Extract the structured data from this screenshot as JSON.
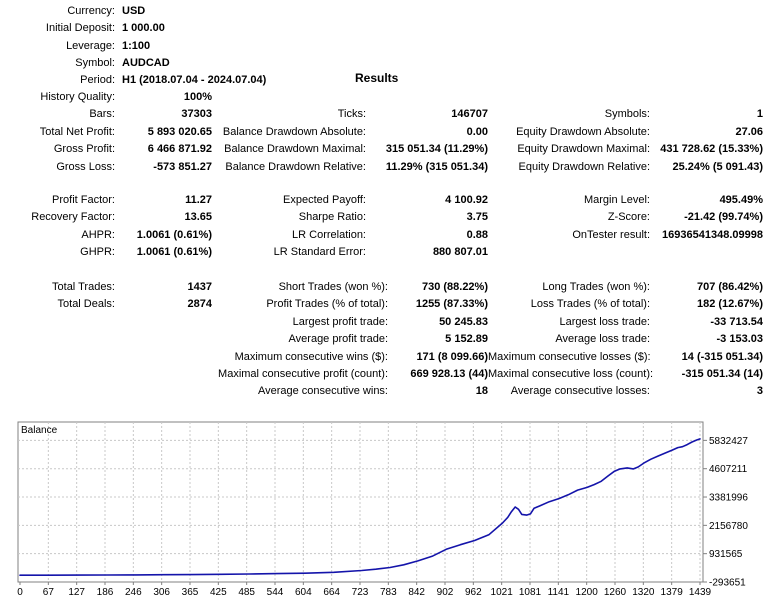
{
  "header": {
    "results_title": "Results",
    "info": [
      {
        "label": "Currency:",
        "value": "USD"
      },
      {
        "label": "Initial Deposit:",
        "value": "1 000.00"
      },
      {
        "label": "Leverage:",
        "value": "1:100"
      },
      {
        "label": "Symbol:",
        "value": "AUDCAD"
      },
      {
        "label": "Period:",
        "value": "H1 (2018.07.04 - 2024.07.04)"
      }
    ]
  },
  "sections": [
    {
      "rows": [
        [
          "History Quality:",
          "100%",
          "",
          "",
          "",
          ""
        ],
        [
          "Bars:",
          "37303",
          "Ticks:",
          "146707",
          "Symbols:",
          "1"
        ],
        [
          "Total Net Profit:",
          "5 893 020.65",
          "Balance Drawdown Absolute:",
          "0.00",
          "Equity Drawdown Absolute:",
          "27.06"
        ],
        [
          "Gross Profit:",
          "6 466 871.92",
          "Balance Drawdown Maximal:",
          "315 051.34 (11.29%)",
          "Equity Drawdown Maximal:",
          "431 728.62 (15.33%)"
        ],
        [
          "Gross Loss:",
          "-573 851.27",
          "Balance Drawdown Relative:",
          "11.29% (315 051.34)",
          "Equity Drawdown Relative:",
          "25.24% (5 091.43)"
        ]
      ]
    },
    {
      "rows": [
        [
          "Profit Factor:",
          "11.27",
          "Expected Payoff:",
          "4 100.92",
          "Margin Level:",
          "495.49%"
        ],
        [
          "Recovery Factor:",
          "13.65",
          "Sharpe Ratio:",
          "3.75",
          "Z-Score:",
          "-21.42 (99.74%)"
        ],
        [
          "AHPR:",
          "1.0061 (0.61%)",
          "LR Correlation:",
          "0.88",
          "OnTester result:",
          "16936541348.09998"
        ],
        [
          "GHPR:",
          "1.0061 (0.61%)",
          "LR Standard Error:",
          "880 807.01",
          "",
          ""
        ]
      ]
    },
    {
      "rows": [
        [
          "Total Trades:",
          "1437",
          "Short Trades (won %):",
          "730 (88.22%)",
          "Long Trades (won %):",
          "707 (86.42%)"
        ],
        [
          "Total Deals:",
          "2874",
          "Profit Trades (% of total):",
          "1255 (87.33%)",
          "Loss Trades (% of total):",
          "182 (12.67%)"
        ],
        [
          "",
          "",
          "Largest profit trade:",
          "50 245.83",
          "Largest loss trade:",
          "-33 713.54"
        ],
        [
          "",
          "",
          "Average profit trade:",
          "5 152.89",
          "Average loss trade:",
          "-3 153.03"
        ],
        [
          "",
          "",
          "Maximum consecutive wins ($):",
          "171 (8 099.66)",
          "Maximum consecutive losses ($):",
          "14 (-315 051.34)"
        ],
        [
          "",
          "",
          "Maximal consecutive profit (count):",
          "669 928.13 (44)",
          "Maximal consecutive loss (count):",
          "-315 051.34 (14)"
        ],
        [
          "",
          "",
          "Average consecutive wins:",
          "18",
          "Average consecutive losses:",
          "3"
        ]
      ]
    }
  ],
  "chart_data": {
    "type": "line",
    "title": "Balance",
    "line_color": "#1414aa",
    "grid_color": "#c8c8c8",
    "border_color": "#808080",
    "x_range": [
      0,
      1439
    ],
    "y_range": [
      -293651,
      6627000
    ],
    "x_tick_labels": [
      "0",
      "67",
      "127",
      "186",
      "246",
      "306",
      "365",
      "425",
      "485",
      "544",
      "604",
      "664",
      "723",
      "783",
      "842",
      "902",
      "962",
      "1021",
      "1081",
      "1141",
      "1200",
      "1260",
      "1320",
      "1379",
      "1439"
    ],
    "y_ticks": [
      {
        "value": 5832427,
        "label": "5832427"
      },
      {
        "value": 4607211,
        "label": "4607211"
      },
      {
        "value": 3381996,
        "label": "3381996"
      },
      {
        "value": 2156780,
        "label": "2156780"
      },
      {
        "value": 931565,
        "label": "931565"
      },
      {
        "value": -293651,
        "label": "-293651"
      }
    ],
    "series": [
      {
        "name": "Balance",
        "points": [
          [
            0,
            1000
          ],
          [
            60,
            2500
          ],
          [
            127,
            5000
          ],
          [
            186,
            9000
          ],
          [
            246,
            14000
          ],
          [
            306,
            20000
          ],
          [
            365,
            28000
          ],
          [
            425,
            40000
          ],
          [
            485,
            52000
          ],
          [
            544,
            68000
          ],
          [
            604,
            88000
          ],
          [
            664,
            125000
          ],
          [
            723,
            205000
          ],
          [
            753,
            260000
          ],
          [
            783,
            335000
          ],
          [
            812,
            450000
          ],
          [
            842,
            620000
          ],
          [
            872,
            820000
          ],
          [
            902,
            1120000
          ],
          [
            932,
            1320000
          ],
          [
            962,
            1500000
          ],
          [
            992,
            1750000
          ],
          [
            1021,
            2260000
          ],
          [
            1032,
            2500000
          ],
          [
            1040,
            2750000
          ],
          [
            1048,
            2950000
          ],
          [
            1055,
            2850000
          ],
          [
            1062,
            2630000
          ],
          [
            1072,
            2600000
          ],
          [
            1080,
            2650000
          ],
          [
            1088,
            2900000
          ],
          [
            1100,
            3000000
          ],
          [
            1120,
            3180000
          ],
          [
            1141,
            3320000
          ],
          [
            1160,
            3480000
          ],
          [
            1180,
            3680000
          ],
          [
            1200,
            3800000
          ],
          [
            1215,
            3920000
          ],
          [
            1230,
            4060000
          ],
          [
            1245,
            4300000
          ],
          [
            1258,
            4500000
          ],
          [
            1270,
            4600000
          ],
          [
            1285,
            4640000
          ],
          [
            1298,
            4600000
          ],
          [
            1308,
            4680000
          ],
          [
            1320,
            4850000
          ],
          [
            1335,
            5020000
          ],
          [
            1350,
            5150000
          ],
          [
            1365,
            5280000
          ],
          [
            1379,
            5400000
          ],
          [
            1392,
            5520000
          ],
          [
            1402,
            5560000
          ],
          [
            1412,
            5650000
          ],
          [
            1422,
            5760000
          ],
          [
            1432,
            5850000
          ],
          [
            1439,
            5894021
          ]
        ]
      }
    ]
  }
}
